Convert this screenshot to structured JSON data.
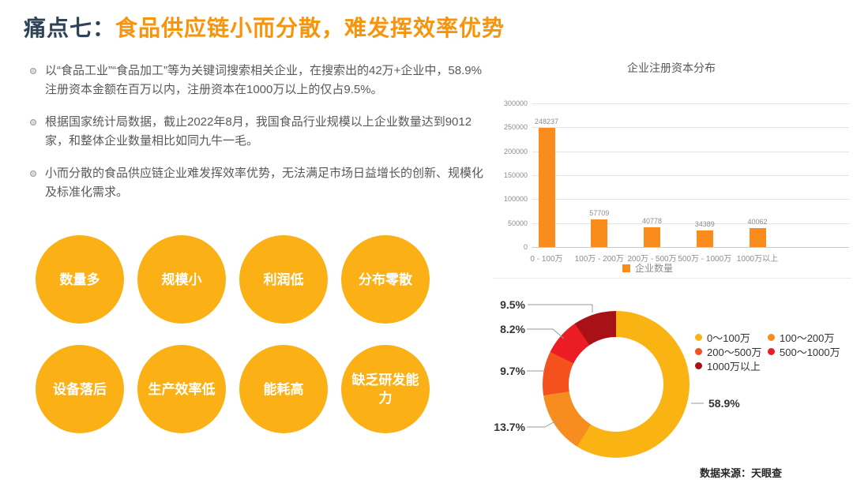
{
  "title": {
    "prefix": "痛点七：",
    "main": "食品供应链小而分散，难发挥效率优势"
  },
  "bullets": [
    "以“食品工业”“食品加工”等为关键词搜索相关企业，在搜索出的42万+企业中，58.9%注册资本金额在百万以内，注册资本在1000万以上的仅占9.5%。",
    "根据国家统计局数据，截止2022年8月，我国食品行业规模以上企业数量达到9012家，和整体企业数量相比如同九牛一毛。",
    "小而分散的食品供应链企业难发挥效率优势，无法满足市场日益增长的创新、规模化及标准化需求。"
  ],
  "circles": [
    {
      "label": "数量多"
    },
    {
      "label": "规模小"
    },
    {
      "label": "利润低"
    },
    {
      "label": "分布零散"
    },
    {
      "label": "设备落后"
    },
    {
      "label": "生产效率低"
    },
    {
      "label": "能耗高"
    },
    {
      "label": "缺乏研发能力"
    }
  ],
  "colors": {
    "title_prefix": "#2E4357",
    "accent_orange": "#F8930A",
    "circle_fill": "#FBB116",
    "bar_fill": "#F98C1D"
  },
  "chart_data": [
    {
      "type": "bar",
      "title": "企业注册资本分布",
      "categories": [
        "0 - 100万",
        "100万 - 200万",
        "200万 - 500万",
        "500万 - 1000万",
        "1000万以上"
      ],
      "values": [
        248237,
        57709,
        40778,
        34389,
        40062
      ],
      "legend": [
        "企业数量"
      ],
      "ylim": [
        0,
        300000
      ],
      "yticks": [
        0,
        50000,
        100000,
        150000,
        200000,
        250000,
        300000
      ],
      "bar_color": "#F98C1D",
      "grid": true,
      "legend_position": "bottom"
    },
    {
      "type": "pie",
      "subtype": "donut",
      "direction": "clockwise",
      "start_angle_deg": 0,
      "legend_position": "right",
      "slices": [
        {
          "label": "0～100万",
          "pct": 58.9,
          "color": "#F9B312"
        },
        {
          "label": "100～200万",
          "pct": 13.7,
          "color": "#F78D1E"
        },
        {
          "label": "200～500万",
          "pct": 9.7,
          "color": "#F4511E"
        },
        {
          "label": "500～1000万",
          "pct": 8.2,
          "color": "#EB1C24"
        },
        {
          "label": "1000万以上",
          "pct": 9.5,
          "color": "#A81216"
        }
      ]
    }
  ],
  "source": "数据来源：天眼查"
}
